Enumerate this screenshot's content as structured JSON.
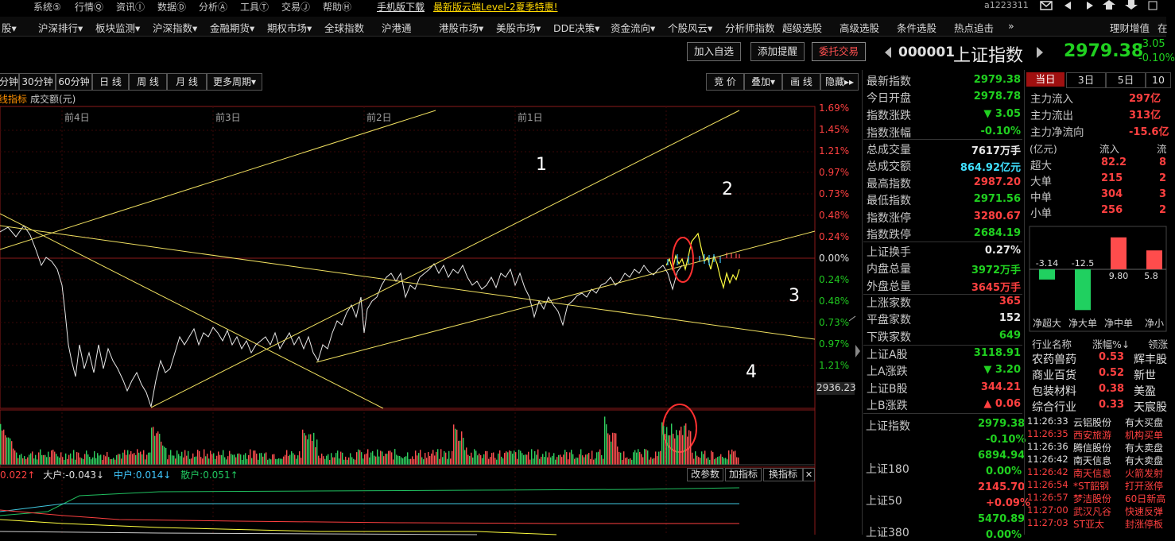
{
  "menu": {
    "items": [
      "系统⑤",
      "行情Ⓠ",
      "资讯Ⓘ",
      "数据Ⓓ",
      "分析Ⓐ",
      "工具Ⓣ",
      "交易Ⓙ",
      "帮助Ⓗ"
    ],
    "download": "手机版下载",
    "promo": "最新版云端Level-2夏季特惠!",
    "user": "a1223311"
  },
  "nav": [
    "股▾",
    "沪深排行▾",
    "板块监测▾",
    "沪深指数▾",
    "金融期货▾",
    "期权市场▾",
    "全球指数",
    "沪港通",
    "港股市场▾",
    "美股市场▾",
    "DDE决策▾",
    "资金流向▾",
    "个股风云▾",
    "分析师指数",
    "超级选股",
    "高级选股",
    "条件选股",
    "热点追击",
    "»",
    "理财增值",
    "在"
  ],
  "header": {
    "btn_add": "加入自选",
    "btn_remind": "添加提醒",
    "btn_trade": "委托交易",
    "code": "000001",
    "name": "上证指数",
    "price": "2979.38",
    "chg": "-3.05",
    "chg_pct": "-0.10%"
  },
  "periods": [
    "分钟",
    "30分钟",
    "60分钟",
    "日 线",
    "周 线",
    "月 线",
    "更多周期▾"
  ],
  "tools": [
    "竞 价",
    "叠加▾",
    "画 线",
    "隐藏▸▸"
  ],
  "indicator_label": "线指标",
  "volume_label": "成交额(元)",
  "day_labels": [
    "前4日",
    "前3日",
    "前2日",
    "前1日"
  ],
  "pct_scale": [
    "1.69%",
    "1.45%",
    "1.21%",
    "0.97%",
    "0.73%",
    "0.48%",
    "0.24%",
    "0.00%",
    "0.24%",
    "0.48%",
    "0.73%",
    "0.97%",
    "1.21%"
  ],
  "cursor_value": "2936.23",
  "annotations": [
    "1",
    "2",
    "3",
    "4"
  ],
  "quote": [
    {
      "k": "最新指数",
      "v": "2979.38",
      "c": "green"
    },
    {
      "k": "今日开盘",
      "v": "2978.78",
      "c": "green"
    },
    {
      "k": "指数涨跌",
      "v": "▼ 3.05",
      "c": "green"
    },
    {
      "k": "指数涨幅",
      "v": "-0.10%",
      "c": "green"
    },
    {
      "k": "总成交量",
      "v": "7617万手",
      "c": "white"
    },
    {
      "k": "总成交额",
      "v": "864.92亿元",
      "c": "cyan"
    },
    {
      "k": "最高指数",
      "v": "2987.20",
      "c": "red"
    },
    {
      "k": "最低指数",
      "v": "2971.56",
      "c": "green"
    },
    {
      "k": "指数涨停",
      "v": "3280.67",
      "c": "red"
    },
    {
      "k": "指数跌停",
      "v": "2684.19",
      "c": "green"
    },
    {
      "k": "上证换手",
      "v": "0.27%",
      "c": "white"
    },
    {
      "k": "内盘总量",
      "v": "3972万手",
      "c": "green"
    },
    {
      "k": "外盘总量",
      "v": "3645万手",
      "c": "red"
    },
    {
      "k": "上涨家数",
      "v": "365",
      "c": "red"
    },
    {
      "k": "平盘家数",
      "v": "152",
      "c": "white"
    },
    {
      "k": "下跌家数",
      "v": "649",
      "c": "green"
    },
    {
      "k": "上证A股",
      "v": "3118.91",
      "c": "green"
    },
    {
      "k": "上A涨跌",
      "v": "▼ 3.20",
      "c": "green"
    },
    {
      "k": "上证B股",
      "v": "344.21",
      "c": "red"
    },
    {
      "k": "上B涨跌",
      "v": "▲ 0.06",
      "c": "red"
    }
  ],
  "indices": [
    {
      "name": "上证指数",
      "val": "2979.38",
      "pct": "-0.10%",
      "vc": "green",
      "pc": "green"
    },
    {
      "name": "上证180",
      "val": "6894.94",
      "pct": "0.00%",
      "vc": "green",
      "pc": "green"
    },
    {
      "name": "上证50",
      "val": "2145.70",
      "pct": "+0.09%",
      "vc": "red",
      "pc": "red"
    },
    {
      "name": "上证380",
      "val": "5470.89",
      "pct": "0.00%",
      "vc": "green",
      "pc": "green"
    }
  ],
  "flow_tabs": [
    "当日",
    "3日",
    "5日",
    "10"
  ],
  "flow": [
    {
      "k": "主力流入",
      "v": "297亿"
    },
    {
      "k": "主力流出",
      "v": "313亿"
    },
    {
      "k": "主力净流向",
      "v": "-15.6亿"
    }
  ],
  "flow_table": {
    "head": [
      "(亿元)",
      "流入",
      "流"
    ],
    "rows": [
      {
        "k": "超大",
        "v": "82.2",
        "t": "8"
      },
      {
        "k": "大单",
        "v": "215",
        "t": "2"
      },
      {
        "k": "中单",
        "v": "304",
        "t": "3"
      },
      {
        "k": "小单",
        "v": "256",
        "t": "2"
      }
    ]
  },
  "net_flow": {
    "values": [
      -3.14,
      -12.5,
      9.8,
      5.8
    ],
    "labels": [
      "-3.14",
      "-12.5",
      "9.80",
      "5.8"
    ],
    "categories": [
      "净超大",
      "净大单",
      "净中单",
      "净小"
    ]
  },
  "industry": {
    "head": [
      "行业名称",
      "涨幅%↓",
      "领涨"
    ],
    "rows": [
      {
        "name": "农药兽药",
        "pct": "0.53",
        "lead": "辉丰股"
      },
      {
        "name": "商业百货",
        "pct": "0.52",
        "lead": "新世"
      },
      {
        "name": "包装材料",
        "pct": "0.38",
        "lead": "美盈"
      },
      {
        "name": "综合行业",
        "pct": "0.33",
        "lead": "天宸股"
      }
    ]
  },
  "ticker": [
    {
      "t": "11:26:33",
      "s": "云铝股份",
      "m": "有大买盘",
      "c": "white"
    },
    {
      "t": "11:26:35",
      "s": "西安旅游",
      "m": "机构买单",
      "c": "red"
    },
    {
      "t": "11:26:36",
      "s": "腾信股份",
      "m": "有大卖盘",
      "c": "white"
    },
    {
      "t": "11:26:42",
      "s": "南天信息",
      "m": "有大卖盘",
      "c": "white"
    },
    {
      "t": "11:26:42",
      "s": "南天信息",
      "m": "火箭发射",
      "c": "red"
    },
    {
      "t": "11:26:54",
      "s": "*ST韶钢",
      "m": "打开涨停",
      "c": "red"
    },
    {
      "t": "11:26:57",
      "s": "梦洁股份",
      "m": "60日新高",
      "c": "red"
    },
    {
      "t": "11:27:00",
      "s": "武汉凡谷",
      "m": "快速反弹",
      "c": "red"
    },
    {
      "t": "11:27:03",
      "s": "ST亚太",
      "m": "封涨停板",
      "c": "red"
    }
  ],
  "bottom": {
    "v1": "0.022↑",
    "big_label": "大户:",
    "big": "-0.043↓",
    "mid_label": "中户:",
    "mid": "0.014↓",
    "small_label": "散户:",
    "small": "0.051↑",
    "btn1": "改参数",
    "btn2": "加指标",
    "btn3": "换指标",
    "close": "✕"
  }
}
